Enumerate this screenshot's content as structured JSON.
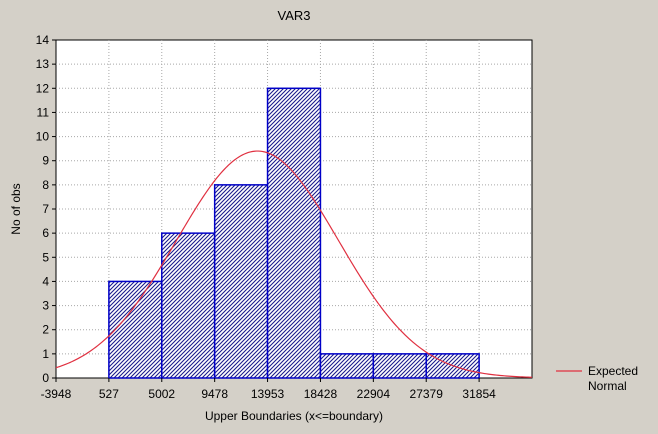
{
  "chart_data": {
    "type": "bar",
    "title": "VAR3",
    "xlabel": "Upper Boundaries (x<=boundary)",
    "ylabel": "No of obs",
    "x_ticks": [
      -3948,
      527,
      5002,
      9478,
      13953,
      18428,
      22904,
      27379,
      31854
    ],
    "xlim": [
      -3948,
      36329
    ],
    "ylim": [
      0,
      14
    ],
    "y_ticks": [
      0,
      1,
      2,
      3,
      4,
      5,
      6,
      7,
      8,
      9,
      10,
      11,
      12,
      13,
      14
    ],
    "grid": true,
    "bins": [
      {
        "lower": 527,
        "upper": 5002,
        "count": 4
      },
      {
        "lower": 5002,
        "upper": 9478,
        "count": 6
      },
      {
        "lower": 9478,
        "upper": 13953,
        "count": 8
      },
      {
        "lower": 13953,
        "upper": 18428,
        "count": 12
      },
      {
        "lower": 18428,
        "upper": 22904,
        "count": 1
      },
      {
        "lower": 22904,
        "upper": 27379,
        "count": 1
      },
      {
        "lower": 27379,
        "upper": 31854,
        "count": 1
      }
    ],
    "expected_normal": {
      "mean": 13100,
      "sd": 6850,
      "peak": 9.4
    },
    "colors": {
      "bar_stroke": "#0000c8",
      "bar_hatch": "#1a1a8c",
      "bar_fill": "#ffffff",
      "curve": "#e03040",
      "plot_bg": "#ffffff",
      "frame_bg": "#d4d0c8"
    },
    "legend": {
      "placement": "right",
      "line1": "Expected",
      "line2": "Normal"
    }
  }
}
